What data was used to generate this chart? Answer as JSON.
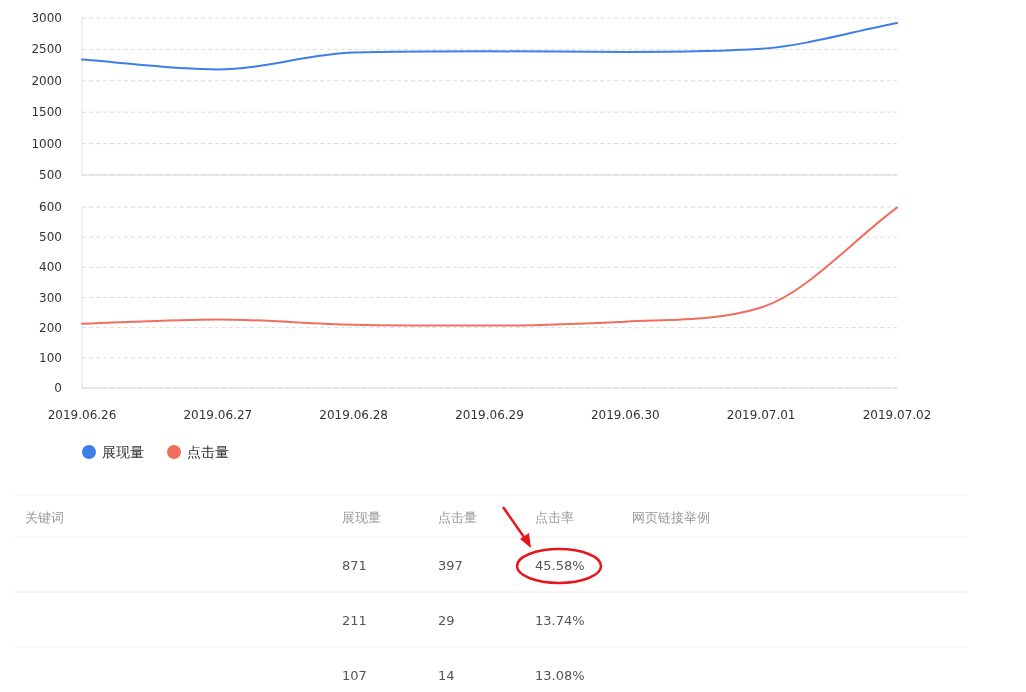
{
  "chart_data": [
    {
      "type": "line",
      "categories": [
        "2019.06.26",
        "2019.06.27",
        "2019.06.28",
        "2019.06.29",
        "2019.06.30",
        "2019.07.01",
        "2019.07.02"
      ],
      "series": [
        {
          "name": "展现量",
          "color": "#3f7ee8",
          "values": [
            2340,
            2180,
            2450,
            2470,
            2460,
            2510,
            2920
          ]
        }
      ],
      "ylim": [
        500,
        3000
      ],
      "yticks": [
        500,
        1000,
        1500,
        2000,
        2500,
        3000
      ],
      "grid": "y",
      "tick_labels": "y",
      "legend": "bottom"
    },
    {
      "type": "line",
      "categories": [
        "2019.06.26",
        "2019.06.27",
        "2019.06.28",
        "2019.06.29",
        "2019.06.30",
        "2019.07.01",
        "2019.07.02"
      ],
      "series": [
        {
          "name": "点击量",
          "color": "#f06e5e",
          "values": [
            213,
            227,
            210,
            207,
            220,
            267,
            598
          ]
        }
      ],
      "ylim": [
        0,
        600
      ],
      "yticks": [
        0,
        100,
        200,
        300,
        400,
        500,
        600
      ],
      "grid": "y",
      "legend": "bottom"
    },
    {
      "type": "other",
      "categories": [
        "关键词",
        "展现量",
        "点击量",
        "点击率",
        "网页链接举例"
      ],
      "cell_labels": [
        [
          null,
          "871",
          "397",
          "45.58%",
          null
        ],
        [
          null,
          "211",
          "29",
          "13.74%",
          null
        ],
        [
          null,
          "107",
          "14",
          "13.08%",
          null
        ]
      ]
    }
  ]
}
